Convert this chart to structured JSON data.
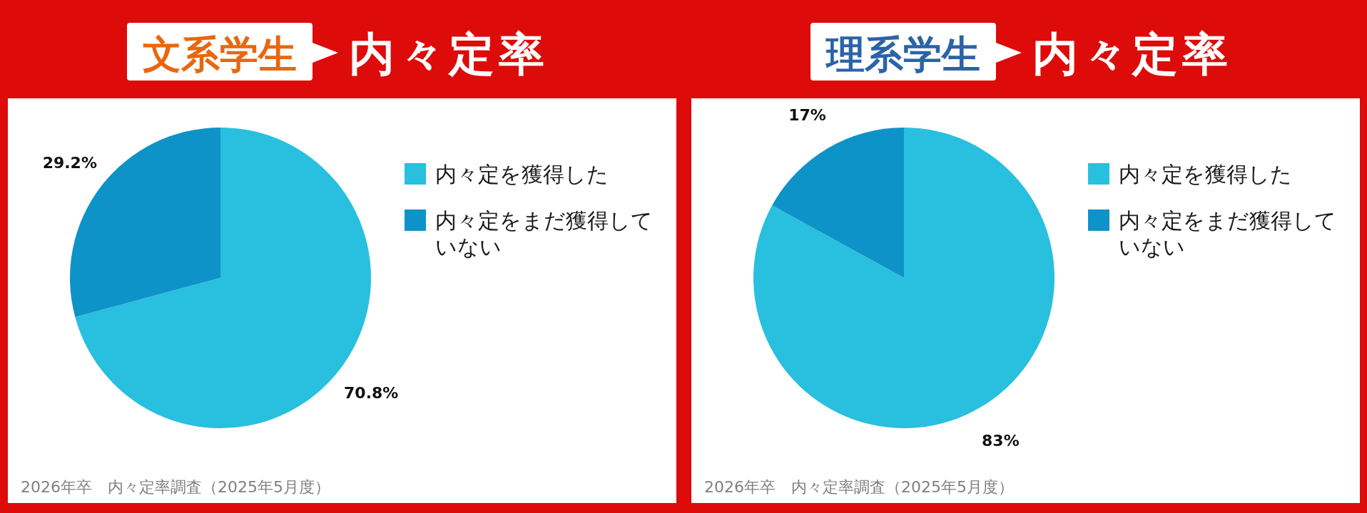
{
  "chart_data": [
    {
      "type": "pie",
      "title": "文系学生",
      "subtitle": "内々定率",
      "categories": [
        "内々定を獲得した",
        "内々定をまだ獲得していない"
      ],
      "values": [
        70.8,
        29.2
      ],
      "colors": [
        "#29bfdf",
        "#0e93c8"
      ],
      "value_labels": [
        "70.8%",
        "29.2%"
      ],
      "legend": "right",
      "annotations": [
        "2026年卒　内々定率調査（2025年5月度）"
      ]
    },
    {
      "type": "pie",
      "title": "理系学生",
      "subtitle": "内々定率",
      "categories": [
        "内々定を獲得した",
        "内々定をまだ獲得していない"
      ],
      "values": [
        83,
        17
      ],
      "colors": [
        "#29bfdf",
        "#0e93c8"
      ],
      "value_labels": [
        "83%",
        "17%"
      ],
      "legend": "right",
      "annotations": [
        "2026年卒　内々定率調査（2025年5月度）"
      ]
    }
  ]
}
